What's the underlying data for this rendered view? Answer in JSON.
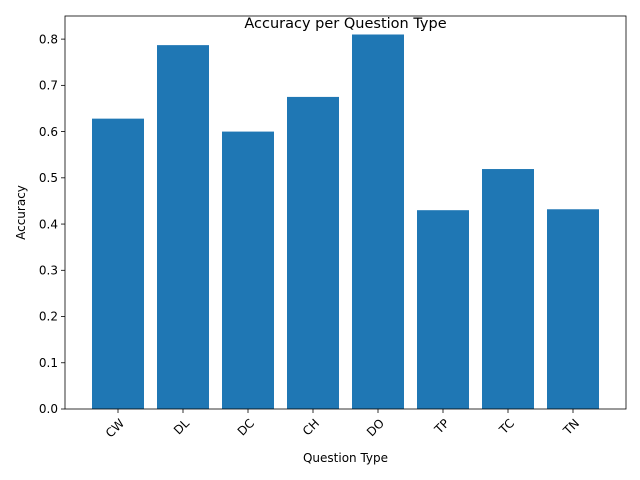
{
  "chart_data": {
    "type": "bar",
    "title": "Accuracy per Question Type",
    "xlabel": "Question Type",
    "ylabel": "Accuracy",
    "categories": [
      "CW",
      "DL",
      "DC",
      "CH",
      "DO",
      "TP",
      "TC",
      "TN"
    ],
    "values": [
      0.628,
      0.787,
      0.6,
      0.675,
      0.81,
      0.43,
      0.519,
      0.432
    ],
    "ylim": [
      0,
      0.85
    ],
    "yticks": [
      "0.0",
      "0.1",
      "0.2",
      "0.3",
      "0.4",
      "0.5",
      "0.6",
      "0.7",
      "0.8"
    ],
    "bar_color": "#1f77b4",
    "grid": false,
    "xtick_rotation": 45
  }
}
